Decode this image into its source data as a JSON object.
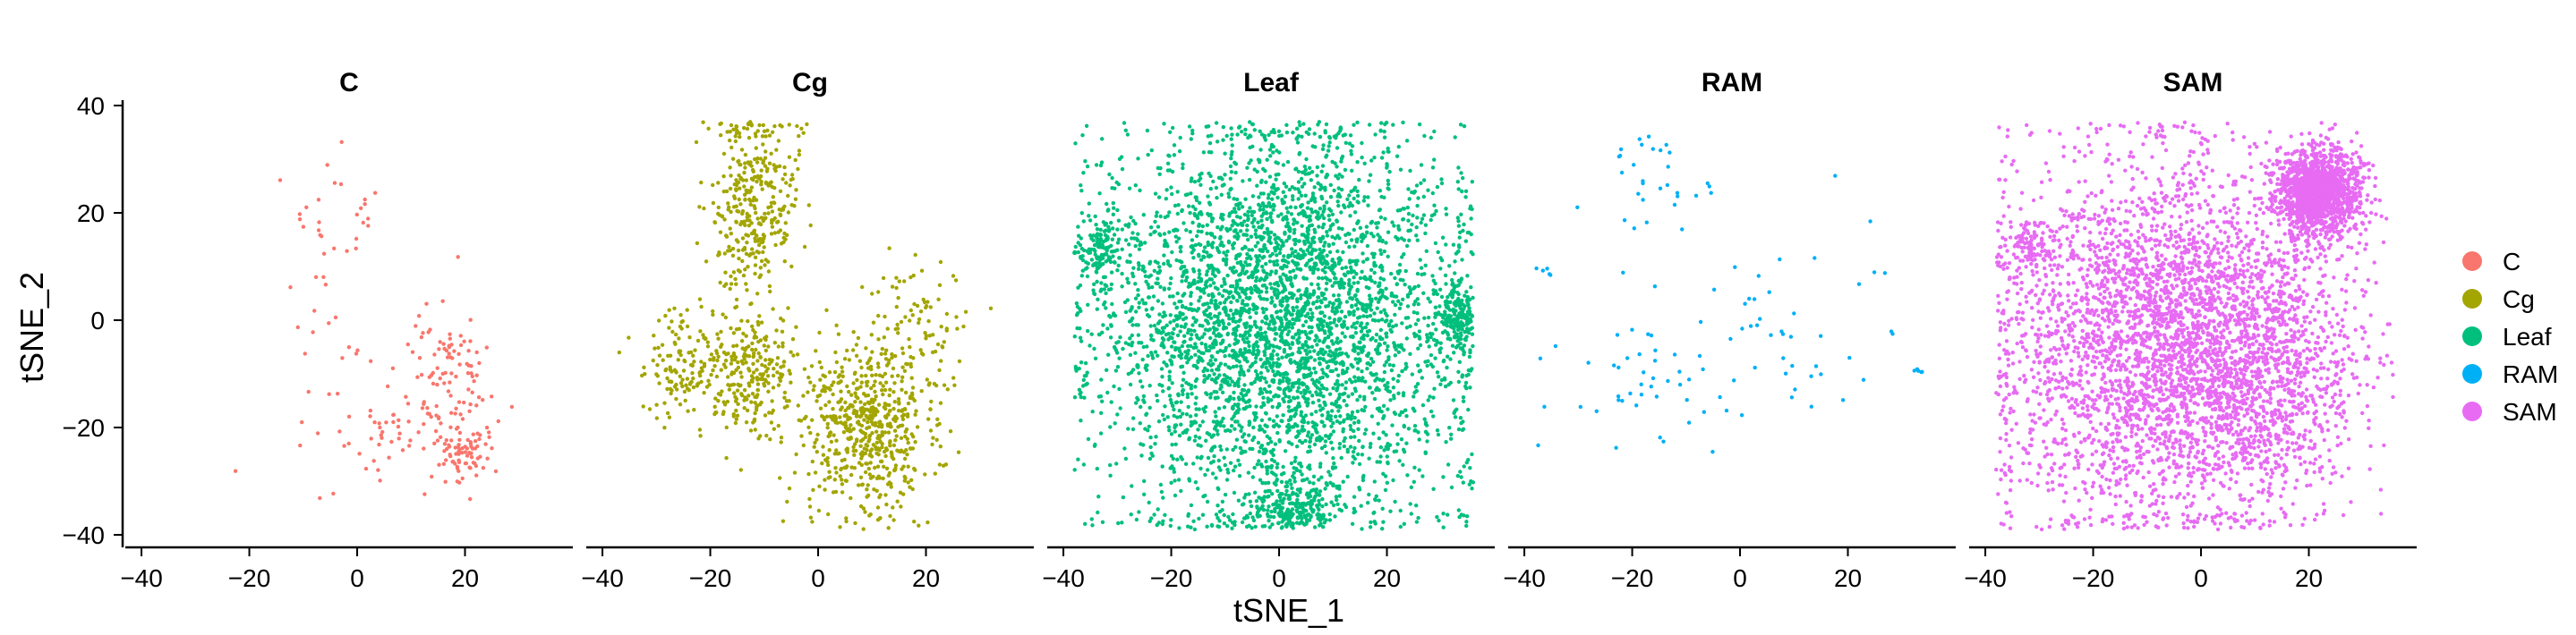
{
  "chart_data": {
    "type": "scatter",
    "title": "",
    "xlabel": "tSNE_1",
    "ylabel": "tSNE_2",
    "xlim": [
      -43,
      40
    ],
    "ylim": [
      -42,
      41
    ],
    "x_ticks": [
      -40,
      -20,
      0,
      20
    ],
    "y_ticks": [
      40,
      20,
      0,
      -20,
      -40
    ],
    "grid": false,
    "legend_position": "right",
    "facets": [
      "C",
      "Cg",
      "Leaf",
      "RAM",
      "SAM"
    ],
    "series": [
      {
        "name": "C",
        "color": "#F8766D",
        "clusters": [
          {
            "cx": 17,
            "cy": -12,
            "sx": 4,
            "sy": 8,
            "n": 110
          },
          {
            "cx": 20,
            "cy": -25,
            "sx": 2,
            "sy": 2,
            "n": 60
          },
          {
            "cx": 8,
            "cy": -22,
            "sx": 6,
            "sy": 4,
            "n": 40
          },
          {
            "cx": -8,
            "cy": 15,
            "sx": 4,
            "sy": 6,
            "n": 25
          },
          {
            "cx": 2,
            "cy": 22,
            "sx": 1,
            "sy": 3,
            "n": 8
          },
          {
            "cx": -5,
            "cy": -15,
            "sx": 8,
            "sy": 8,
            "n": 25
          }
        ]
      },
      {
        "name": "Cg",
        "color": "#A3A500",
        "clusters": [
          {
            "cx": -12,
            "cy": 22,
            "sx": 4,
            "sy": 10,
            "n": 360
          },
          {
            "cx": 9,
            "cy": -20,
            "sx": 6,
            "sy": 8,
            "n": 600
          },
          {
            "cx": -24,
            "cy": -8,
            "sx": 4,
            "sy": 5,
            "n": 150
          },
          {
            "cx": -12,
            "cy": -10,
            "sx": 4,
            "sy": 6,
            "n": 220
          },
          {
            "cx": 18,
            "cy": 0,
            "sx": 5,
            "sy": 6,
            "n": 80
          }
        ]
      },
      {
        "name": "Leaf",
        "color": "#00BF7D",
        "clusters": [
          {
            "cx": 0,
            "cy": 0,
            "sx": 17,
            "sy": 18,
            "n": 4000
          },
          {
            "cx": 33,
            "cy": 0,
            "sx": 2,
            "sy": 3,
            "n": 180
          },
          {
            "cx": -33,
            "cy": 13,
            "sx": 2,
            "sy": 3,
            "n": 120
          },
          {
            "cx": 3,
            "cy": -35,
            "sx": 4,
            "sy": 3,
            "n": 200
          }
        ]
      },
      {
        "name": "RAM",
        "color": "#00B0F6",
        "clusters": [
          {
            "cx": -15,
            "cy": 26,
            "sx": 6,
            "sy": 5,
            "n": 30
          },
          {
            "cx": -15,
            "cy": -10,
            "sx": 10,
            "sy": 6,
            "n": 50
          },
          {
            "cx": 5,
            "cy": 0,
            "sx": 15,
            "sy": 10,
            "n": 40
          },
          {
            "cx": -39,
            "cy": 9,
            "sx": 0.5,
            "sy": 0.5,
            "n": 5
          },
          {
            "cx": 33,
            "cy": -9,
            "sx": 1,
            "sy": 0.4,
            "n": 5
          }
        ]
      },
      {
        "name": "SAM",
        "color": "#E76BF3",
        "clusters": [
          {
            "cx": -8,
            "cy": -3,
            "sx": 15,
            "sy": 17,
            "n": 3200
          },
          {
            "cx": 22,
            "cy": 24,
            "sx": 4,
            "sy": 4,
            "n": 1400
          },
          {
            "cx": 10,
            "cy": -10,
            "sx": 10,
            "sy": 12,
            "n": 1000
          },
          {
            "cx": -32,
            "cy": 13,
            "sx": 2,
            "sy": 2,
            "n": 80
          }
        ]
      }
    ]
  }
}
